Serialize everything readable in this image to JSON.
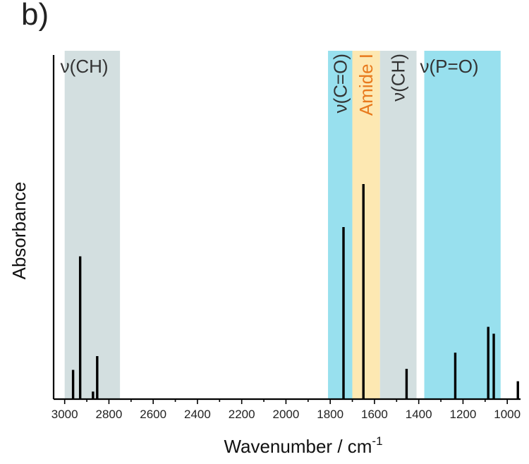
{
  "panel_label": "b)",
  "colors": {
    "gray_band": "#d3dfe0",
    "blue_band": "#98e0ee",
    "yellow_band": "#fde8b2",
    "orange_text": "#e87a1d",
    "peak": "#000000"
  },
  "chart_data": {
    "type": "bar",
    "title": "",
    "xlabel": "Wavenumber / cm",
    "xlabel_superscript": "-1",
    "ylabel": "Absorbance",
    "xlim": [
      3050,
      940
    ],
    "x_reversed": true,
    "ylim": [
      0,
      1
    ],
    "grid": false,
    "x_ticks": [
      3000,
      2800,
      2600,
      2400,
      2200,
      2000,
      1800,
      1600,
      1400,
      1200,
      1000
    ],
    "peaks": [
      {
        "x": 2962,
        "y": 0.085
      },
      {
        "x": 2930,
        "y": 0.415
      },
      {
        "x": 2872,
        "y": 0.022
      },
      {
        "x": 2853,
        "y": 0.125
      },
      {
        "x": 1740,
        "y": 0.5
      },
      {
        "x": 1650,
        "y": 0.625
      },
      {
        "x": 1455,
        "y": 0.088
      },
      {
        "x": 1235,
        "y": 0.135
      },
      {
        "x": 1086,
        "y": 0.21
      },
      {
        "x": 1061,
        "y": 0.19
      },
      {
        "x": 952,
        "y": 0.052
      }
    ],
    "bands": [
      {
        "label": "ν(CH)",
        "x_from": 3000,
        "x_to": 2750,
        "color": "gray",
        "orientation": "horizontal",
        "text_color": "#333333"
      },
      {
        "label": "ν(C=O)",
        "x_from": 1810,
        "x_to": 1700,
        "color": "blue",
        "orientation": "vertical",
        "text_color": "#333333"
      },
      {
        "label": "Amide I",
        "x_from": 1700,
        "x_to": 1575,
        "color": "yellow",
        "orientation": "vertical",
        "text_color": "#e87a1d"
      },
      {
        "label": "ν(CH)",
        "x_from": 1575,
        "x_to": 1410,
        "color": "gray",
        "orientation": "vertical",
        "text_color": "#333333"
      },
      {
        "label": "ν(P=O)",
        "x_from": 1375,
        "x_to": 1030,
        "color": "blue",
        "orientation": "horizontal",
        "text_color": "#333333"
      }
    ]
  }
}
